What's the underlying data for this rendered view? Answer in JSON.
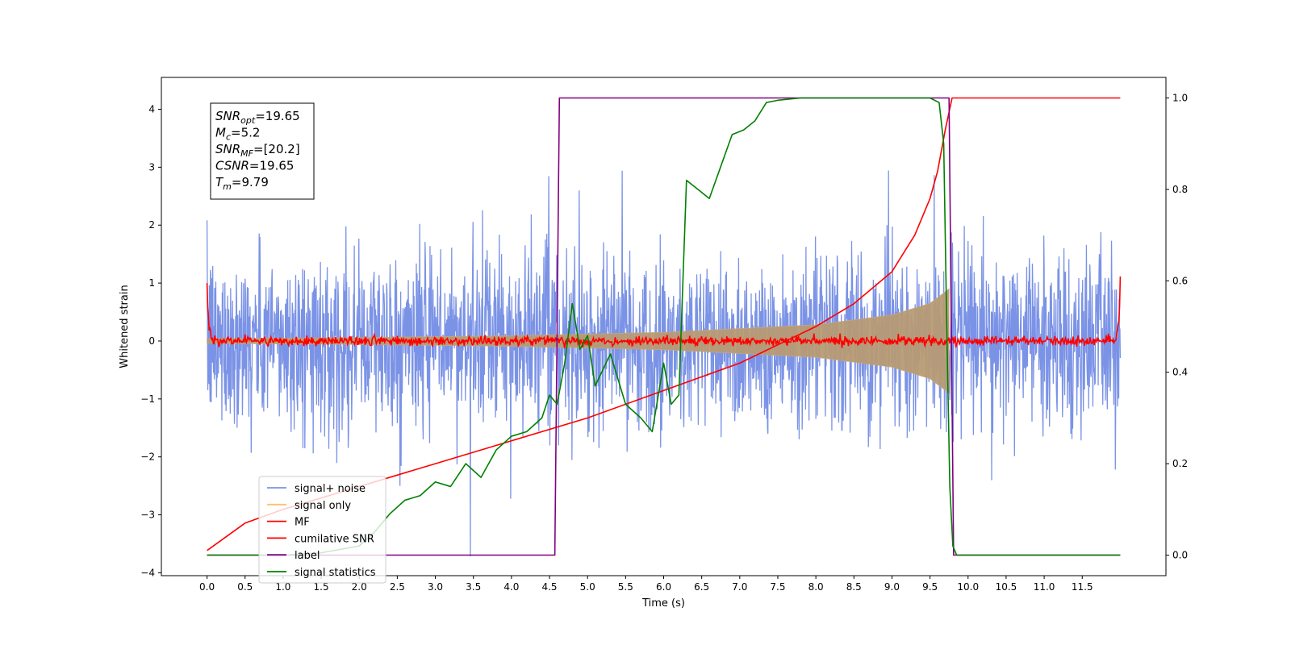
{
  "chart_data": {
    "type": "line",
    "xlabel": "Time (s)",
    "ylabel": "Whitened strain",
    "xlim": [
      -0.6,
      12.6
    ],
    "ylim": [
      -4.05,
      4.55
    ],
    "y2lim": [
      -0.045,
      1.045
    ],
    "xticks": [
      "0.0",
      "0.5",
      "1.0",
      "1.5",
      "2.0",
      "2.5",
      "3.0",
      "3.5",
      "4.0",
      "4.5",
      "5.0",
      "5.5",
      "6.0",
      "6.5",
      "7.0",
      "7.5",
      "8.0",
      "8.5",
      "9.0",
      "9.5",
      "10.0",
      "10.5",
      "11.0",
      "11.5"
    ],
    "yticks": [
      "−4",
      "−3",
      "−2",
      "−1",
      "0",
      "1",
      "2",
      "3",
      "4"
    ],
    "y2ticks": [
      "0.0",
      "0.2",
      "0.4",
      "0.6",
      "0.8",
      "1.0"
    ],
    "annotation": [
      {
        "sym": "SNR",
        "sub": "opt",
        "value": "=19.65"
      },
      {
        "sym": "M",
        "sub": "c",
        "value": "=5.2"
      },
      {
        "sym": "SNR",
        "sub": "MF",
        "value": "=[20.2]"
      },
      {
        "sym": "CSNR",
        "sub": "",
        "value": "=19.65"
      },
      {
        "sym": "T",
        "sub": "m",
        "value": "=9.79"
      }
    ],
    "legend_position": "lower-left",
    "series": [
      {
        "name": "signal+ noise",
        "color": "#7b93e6",
        "axis": "left",
        "noise_std": 0.75,
        "x_range": [
          0,
          12
        ]
      },
      {
        "name": "signal only",
        "color": "#ffc266",
        "axis": "left",
        "chirp_merger_time": 9.79,
        "envelope": [
          [
            0,
            0.04
          ],
          [
            2,
            0.06
          ],
          [
            4,
            0.09
          ],
          [
            6,
            0.15
          ],
          [
            8,
            0.28
          ],
          [
            9,
            0.45
          ],
          [
            9.5,
            0.65
          ],
          [
            9.75,
            0.9
          ]
        ]
      },
      {
        "name": "MF",
        "color": "#ff0000",
        "axis": "left",
        "noise_std": 0.04,
        "x_range": [
          0,
          12
        ],
        "edge_value": 1.0
      },
      {
        "name": "cumilative SNR",
        "color": "#ff0000",
        "axis": "right",
        "points": [
          [
            0,
            0.01
          ],
          [
            0.5,
            0.07
          ],
          [
            1,
            0.1
          ],
          [
            2,
            0.15
          ],
          [
            3,
            0.2
          ],
          [
            4,
            0.25
          ],
          [
            5,
            0.3
          ],
          [
            6,
            0.36
          ],
          [
            7,
            0.42
          ],
          [
            7.5,
            0.46
          ],
          [
            8,
            0.5
          ],
          [
            8.5,
            0.55
          ],
          [
            9,
            0.62
          ],
          [
            9.3,
            0.7
          ],
          [
            9.5,
            0.78
          ],
          [
            9.6,
            0.84
          ],
          [
            9.7,
            0.93
          ],
          [
            9.79,
            1.0
          ],
          [
            12,
            1.0
          ]
        ]
      },
      {
        "name": "label",
        "color": "#800080",
        "axis": "right",
        "points": [
          [
            0,
            0.0
          ],
          [
            4.57,
            0.0
          ],
          [
            4.63,
            1.0
          ],
          [
            9.75,
            1.0
          ],
          [
            9.81,
            0.0
          ],
          [
            12,
            0.0
          ]
        ]
      },
      {
        "name": "signal statistics",
        "color": "#008000",
        "axis": "right",
        "points": [
          [
            0,
            0.0
          ],
          [
            1,
            0.0
          ],
          [
            1.5,
            0.005
          ],
          [
            2,
            0.02
          ],
          [
            2.2,
            0.05
          ],
          [
            2.4,
            0.09
          ],
          [
            2.6,
            0.12
          ],
          [
            2.8,
            0.13
          ],
          [
            3,
            0.16
          ],
          [
            3.2,
            0.15
          ],
          [
            3.4,
            0.2
          ],
          [
            3.6,
            0.17
          ],
          [
            3.8,
            0.23
          ],
          [
            4,
            0.26
          ],
          [
            4.2,
            0.27
          ],
          [
            4.4,
            0.3
          ],
          [
            4.5,
            0.35
          ],
          [
            4.6,
            0.33
          ],
          [
            4.7,
            0.42
          ],
          [
            4.8,
            0.55
          ],
          [
            4.9,
            0.45
          ],
          [
            5,
            0.48
          ],
          [
            5.1,
            0.37
          ],
          [
            5.3,
            0.44
          ],
          [
            5.5,
            0.33
          ],
          [
            5.7,
            0.3
          ],
          [
            5.85,
            0.27
          ],
          [
            6,
            0.42
          ],
          [
            6.1,
            0.33
          ],
          [
            6.2,
            0.35
          ],
          [
            6.3,
            0.82
          ],
          [
            6.45,
            0.8
          ],
          [
            6.6,
            0.78
          ],
          [
            6.75,
            0.85
          ],
          [
            6.9,
            0.92
          ],
          [
            7.05,
            0.93
          ],
          [
            7.2,
            0.95
          ],
          [
            7.35,
            0.99
          ],
          [
            7.5,
            0.995
          ],
          [
            7.8,
            1.0
          ],
          [
            8.5,
            1.0
          ],
          [
            9.2,
            1.0
          ],
          [
            9.5,
            1.0
          ],
          [
            9.62,
            0.99
          ],
          [
            9.68,
            0.9
          ],
          [
            9.72,
            0.5
          ],
          [
            9.76,
            0.15
          ],
          [
            9.8,
            0.02
          ],
          [
            9.85,
            0.0
          ],
          [
            12,
            0.0
          ]
        ]
      }
    ]
  }
}
